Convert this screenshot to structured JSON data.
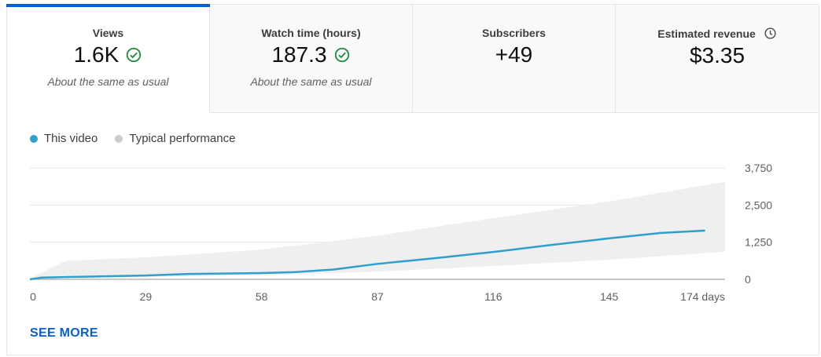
{
  "metrics": [
    {
      "label": "Views",
      "value": "1.6K",
      "note": "About the same as usual",
      "icon": "check-circle-icon",
      "active": true
    },
    {
      "label": "Watch time (hours)",
      "value": "187.3",
      "note": "About the same as usual",
      "icon": "check-circle-icon",
      "active": false
    },
    {
      "label": "Subscribers",
      "value": "+49",
      "note": "",
      "active": false
    },
    {
      "label": "Estimated revenue",
      "value": "$3.35",
      "note": "",
      "icon": "clock-icon",
      "active": false
    }
  ],
  "legend": {
    "this_video": "This video",
    "typical": "Typical performance"
  },
  "colors": {
    "accent": "#065fd4",
    "line": "#2ea0c9",
    "band": "#efefef",
    "check": "#1e8e3e",
    "grid": "#e5e5e5"
  },
  "see_more_label": "SEE MORE",
  "chart_data": {
    "type": "area",
    "x_label_suffix": "days",
    "xlim": [
      0,
      174
    ],
    "ylim": [
      0,
      3750
    ],
    "x_ticks": [
      0,
      29,
      58,
      87,
      116,
      145,
      174
    ],
    "x_tick_labels": [
      "0",
      "29",
      "58",
      "87",
      "116",
      "145",
      "174 days"
    ],
    "y_ticks": [
      0,
      1250,
      2500,
      3750
    ],
    "y_tick_labels": [
      "0",
      "1,250",
      "2,500",
      "3,750"
    ],
    "grid": true,
    "series": [
      {
        "name": "This video",
        "x": [
          0,
          3,
          14,
          29,
          40,
          58,
          66,
          76,
          87,
          102,
          116,
          130,
          145,
          158,
          169
        ],
        "values": [
          0,
          60,
          90,
          130,
          180,
          210,
          240,
          330,
          520,
          720,
          920,
          1150,
          1380,
          1560,
          1640
        ]
      }
    ],
    "typical_band": {
      "x": [
        0,
        9,
        29,
        58,
        87,
        116,
        145,
        174
      ],
      "upper": [
        20,
        620,
        740,
        1000,
        1470,
        2060,
        2620,
        3280
      ],
      "lower": [
        0,
        40,
        80,
        130,
        260,
        450,
        660,
        930
      ]
    }
  }
}
